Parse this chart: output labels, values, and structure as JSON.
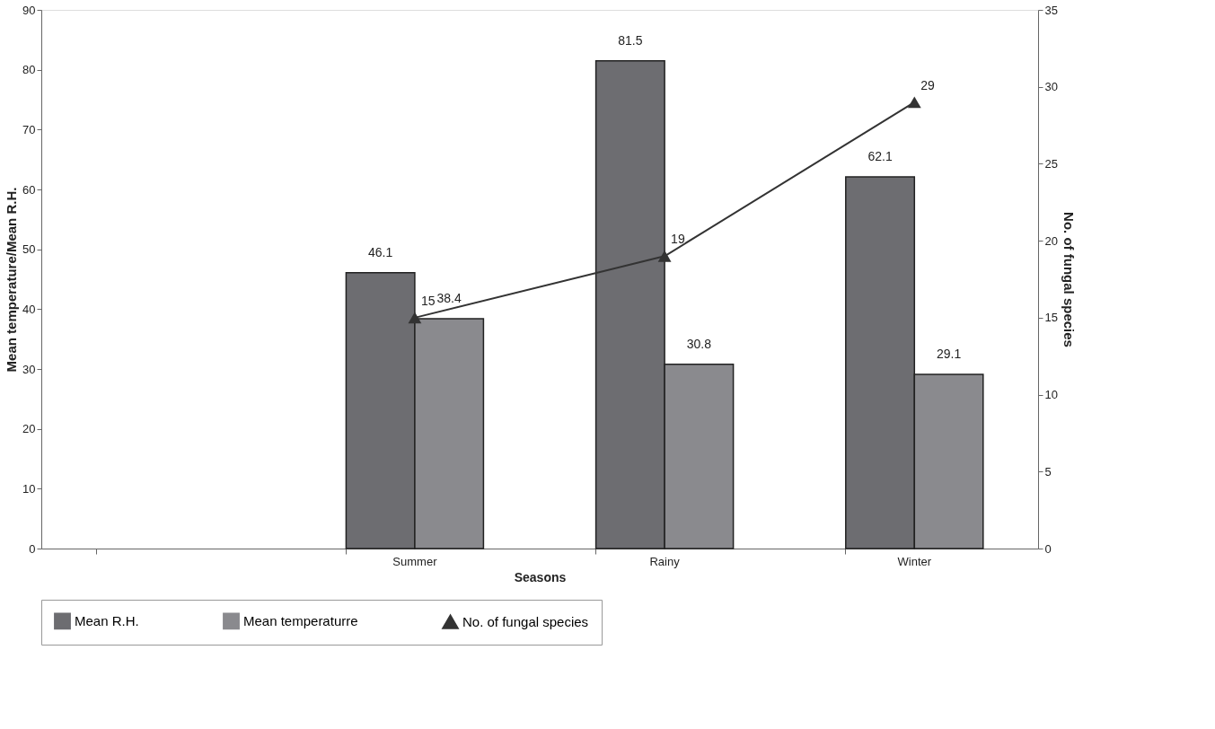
{
  "chart_data": {
    "type": "bar",
    "xlabel": "Seasons",
    "ylabel": "Mean temperature/Mean R.H.",
    "y2label": "No. of fungal species",
    "categories": [
      null,
      "Summer",
      "Rainy",
      "Winter"
    ],
    "series": [
      {
        "name": "Mean R.H.",
        "color": "#6d6d71",
        "values": [
          null,
          46.1,
          81.5,
          62.1
        ]
      },
      {
        "name": "Mean temperaturre",
        "color": "#8a8a8e",
        "values": [
          null,
          38.4,
          30.8,
          29.1
        ]
      },
      {
        "name": "No. of fungal species",
        "type": "line",
        "axis": "y2",
        "color": "#333333",
        "values": [
          null,
          15,
          19,
          29
        ]
      }
    ],
    "ylim": [
      0,
      90
    ],
    "yticks": [
      0,
      10,
      20,
      30,
      40,
      50,
      60,
      70,
      80,
      90
    ],
    "y2lim": [
      0,
      35
    ],
    "y2ticks": [
      0,
      5,
      10,
      15,
      20,
      25,
      30,
      35
    ],
    "data_labels": true,
    "legend": "bottom",
    "grid": false,
    "marker": "triangle"
  }
}
